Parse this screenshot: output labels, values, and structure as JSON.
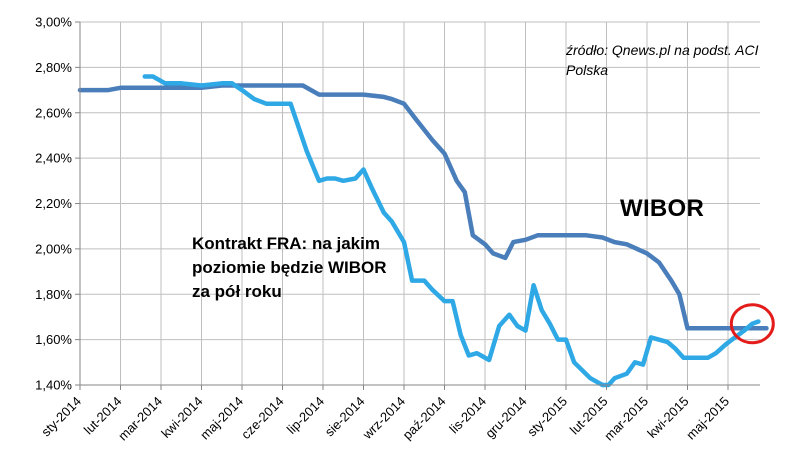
{
  "chart_data": {
    "type": "line",
    "title": "",
    "xlabel": "",
    "ylabel": "",
    "ylim": [
      1.4,
      3.0
    ],
    "y_ticks": [
      "3,00%",
      "2,80%",
      "2,60%",
      "2,40%",
      "2,20%",
      "2,00%",
      "1,80%",
      "1,60%",
      "1,40%"
    ],
    "x_ticks": [
      "sty-2014",
      "lut-2014",
      "mar-2014",
      "kwi-2014",
      "maj-2014",
      "cze-2014",
      "lip-2014",
      "sie-2014",
      "wrz-2014",
      "paź-2014",
      "lis-2014",
      "gru-2014",
      "sty-2015",
      "lut-2015",
      "mar-2015",
      "kwi-2015",
      "maj-2015"
    ],
    "grid": true,
    "x_unit": "months since sty-2014",
    "series": [
      {
        "name": "WIBOR",
        "color": "#4a7ebb",
        "points": [
          [
            0,
            2.7
          ],
          [
            0.7,
            2.7
          ],
          [
            1.0,
            2.71
          ],
          [
            2.0,
            2.71
          ],
          [
            3.0,
            2.71
          ],
          [
            3.5,
            2.72
          ],
          [
            4.0,
            2.72
          ],
          [
            5.0,
            2.72
          ],
          [
            5.5,
            2.72
          ],
          [
            5.9,
            2.68
          ],
          [
            6.5,
            2.68
          ],
          [
            7.0,
            2.68
          ],
          [
            7.5,
            2.67
          ],
          [
            7.7,
            2.66
          ],
          [
            8.0,
            2.64
          ],
          [
            8.3,
            2.57
          ],
          [
            8.7,
            2.48
          ],
          [
            9.0,
            2.42
          ],
          [
            9.3,
            2.3
          ],
          [
            9.5,
            2.25
          ],
          [
            9.7,
            2.06
          ],
          [
            10.0,
            2.02
          ],
          [
            10.2,
            1.98
          ],
          [
            10.5,
            1.96
          ],
          [
            10.7,
            2.03
          ],
          [
            11.0,
            2.04
          ],
          [
            11.3,
            2.06
          ],
          [
            12.0,
            2.06
          ],
          [
            12.5,
            2.06
          ],
          [
            12.9,
            2.05
          ],
          [
            13.2,
            2.03
          ],
          [
            13.5,
            2.02
          ],
          [
            14.0,
            1.98
          ],
          [
            14.3,
            1.94
          ],
          [
            14.6,
            1.86
          ],
          [
            14.8,
            1.8
          ],
          [
            15.0,
            1.65
          ],
          [
            15.5,
            1.65
          ],
          [
            16.0,
            1.65
          ],
          [
            16.6,
            1.65
          ],
          [
            16.95,
            1.65
          ]
        ]
      },
      {
        "name": "Kontrakt FRA",
        "color": "#2fa8e6",
        "points": [
          [
            1.6,
            2.76
          ],
          [
            1.8,
            2.76
          ],
          [
            2.1,
            2.73
          ],
          [
            2.5,
            2.73
          ],
          [
            3.0,
            2.72
          ],
          [
            3.5,
            2.73
          ],
          [
            3.75,
            2.73
          ],
          [
            4.0,
            2.7
          ],
          [
            4.3,
            2.66
          ],
          [
            4.6,
            2.64
          ],
          [
            5.2,
            2.64
          ],
          [
            5.6,
            2.43
          ],
          [
            5.9,
            2.3
          ],
          [
            6.1,
            2.31
          ],
          [
            6.3,
            2.31
          ],
          [
            6.5,
            2.3
          ],
          [
            6.8,
            2.31
          ],
          [
            7.0,
            2.35
          ],
          [
            7.2,
            2.27
          ],
          [
            7.5,
            2.16
          ],
          [
            7.7,
            2.12
          ],
          [
            8.0,
            2.03
          ],
          [
            8.2,
            1.86
          ],
          [
            8.5,
            1.86
          ],
          [
            8.7,
            1.82
          ],
          [
            9.0,
            1.77
          ],
          [
            9.2,
            1.77
          ],
          [
            9.4,
            1.62
          ],
          [
            9.6,
            1.53
          ],
          [
            9.8,
            1.54
          ],
          [
            10.1,
            1.51
          ],
          [
            10.35,
            1.66
          ],
          [
            10.6,
            1.71
          ],
          [
            10.8,
            1.66
          ],
          [
            11.0,
            1.64
          ],
          [
            11.2,
            1.84
          ],
          [
            11.4,
            1.73
          ],
          [
            11.6,
            1.67
          ],
          [
            11.8,
            1.6
          ],
          [
            12.0,
            1.6
          ],
          [
            12.2,
            1.5
          ],
          [
            12.6,
            1.43
          ],
          [
            12.9,
            1.4
          ],
          [
            13.05,
            1.4
          ],
          [
            13.2,
            1.43
          ],
          [
            13.5,
            1.45
          ],
          [
            13.7,
            1.5
          ],
          [
            13.9,
            1.49
          ],
          [
            14.1,
            1.61
          ],
          [
            14.5,
            1.59
          ],
          [
            14.7,
            1.56
          ],
          [
            14.9,
            1.52
          ],
          [
            15.2,
            1.52
          ],
          [
            15.5,
            1.52
          ],
          [
            15.7,
            1.54
          ],
          [
            15.95,
            1.58
          ],
          [
            16.1,
            1.6
          ],
          [
            16.4,
            1.64
          ],
          [
            16.6,
            1.67
          ],
          [
            16.75,
            1.68
          ]
        ]
      }
    ],
    "highlight": {
      "label": "red-circle",
      "x": 16.6,
      "y": 1.67,
      "color": "#e41b1b"
    },
    "annotations": {
      "source": "źródło: Qnews.pl na podst. ACI Polska",
      "wibor_label": "WIBOR",
      "fra_label": "Kontrakt FRA: na jakim poziomie będzie WIBOR za pół roku"
    },
    "colors": {
      "grid": "#bfbfbf",
      "axis": "#868686",
      "background": "#ffffff"
    }
  }
}
